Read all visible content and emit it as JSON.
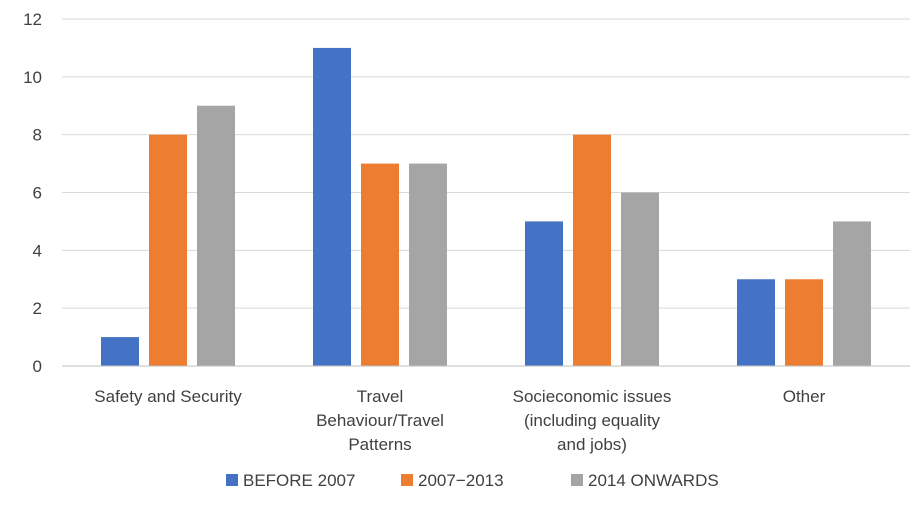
{
  "chart_data": {
    "type": "bar",
    "title": "",
    "xlabel": "",
    "ylabel": "",
    "ylim": [
      0,
      12
    ],
    "yticks": [
      0,
      2,
      4,
      6,
      8,
      10,
      12
    ],
    "grid": true,
    "legend_position": "bottom",
    "categories": [
      [
        "Safety and Security"
      ],
      [
        "Travel",
        "Behaviour/Travel",
        "Patterns"
      ],
      [
        "Socieconomic issues",
        "(including equality",
        "and jobs)"
      ],
      [
        "Other"
      ]
    ],
    "series": [
      {
        "name": "BEFORE 2007",
        "color": "#4472c4",
        "values": [
          1,
          11,
          5,
          3
        ]
      },
      {
        "name": "2007−2013",
        "color": "#ed7d31",
        "values": [
          8,
          7,
          8,
          3
        ]
      },
      {
        "name": "2014 ONWARDS",
        "color": "#a5a5a5",
        "values": [
          9,
          7,
          6,
          5
        ]
      }
    ]
  }
}
